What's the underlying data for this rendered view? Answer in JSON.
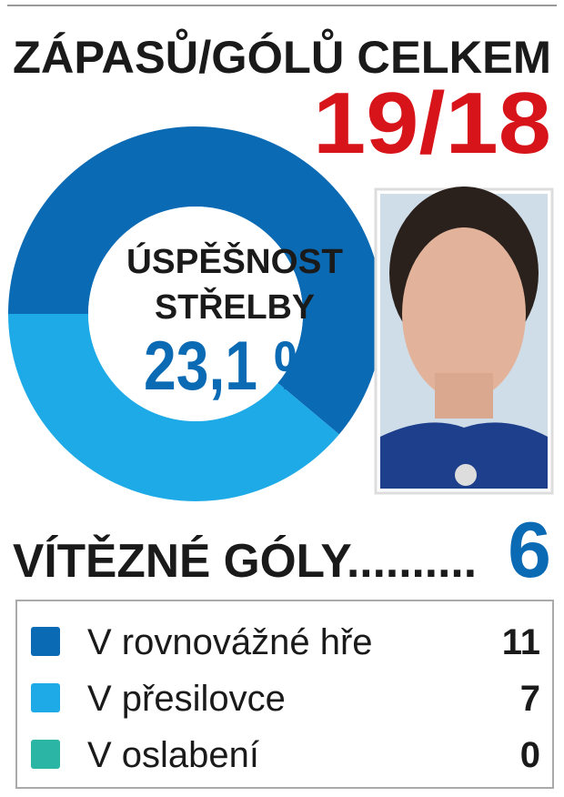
{
  "chart_data": {
    "type": "donut",
    "title": "ZÁPASŮ/GÓLŮ CELKEM",
    "headline": "19/18",
    "center_lines": [
      "ÚSPĚŠNOST",
      "STŘELBY"
    ],
    "center_value": "23,1 %",
    "winning_goals_label": "VÍTĚZNÉ GÓLY..........",
    "winning_goals": 6,
    "categories": [
      "V rovnovážné hře",
      "V přesilovce",
      "V oslabení"
    ],
    "values": [
      11,
      7,
      0
    ],
    "colors": [
      "#0b6ab4",
      "#1eaae7",
      "#2bb5a4"
    ]
  }
}
